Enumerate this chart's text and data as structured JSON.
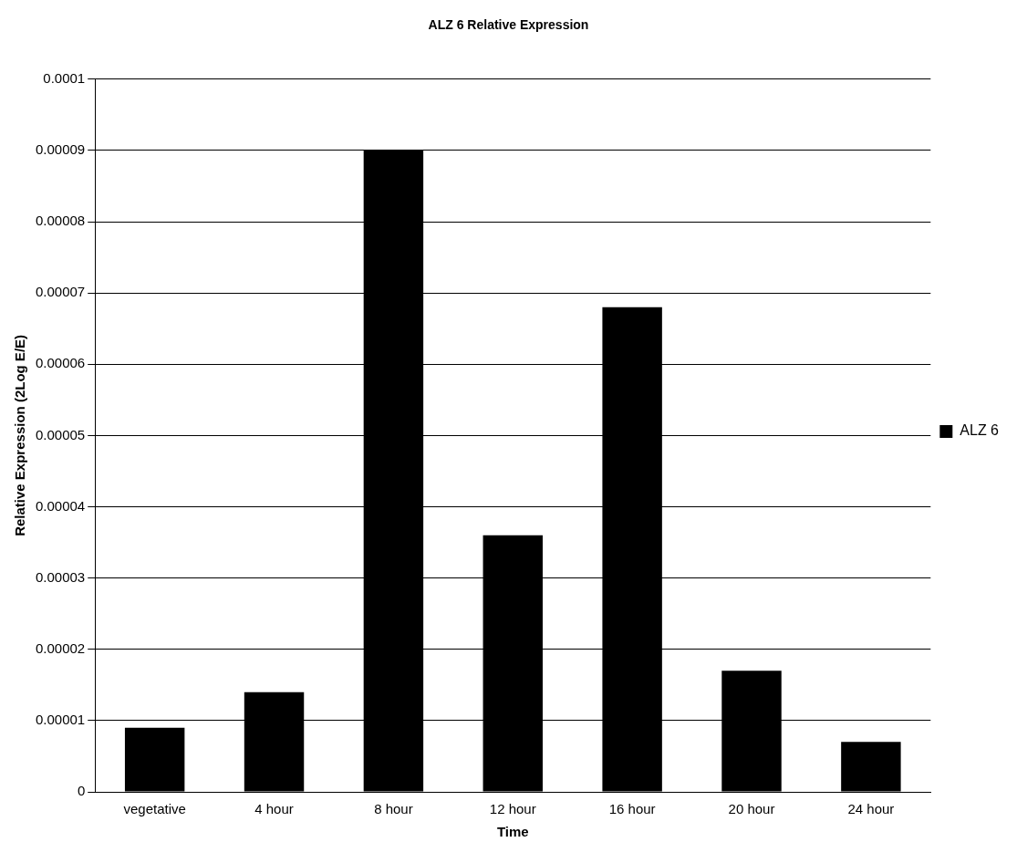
{
  "chart_data": {
    "type": "bar",
    "title": "ALZ 6 Relative Expression",
    "xlabel": "Time",
    "ylabel": "Relative Expression (2Log E/E)",
    "categories": [
      "vegetative",
      "4 hour",
      "8 hour",
      "12 hour",
      "16 hour",
      "20 hour",
      "24 hour"
    ],
    "series": [
      {
        "name": "ALZ 6",
        "color": "#000000",
        "values": [
          9e-06,
          1.4e-05,
          9e-05,
          3.6e-05,
          6.8e-05,
          1.7e-05,
          7e-06
        ]
      }
    ],
    "ylim": [
      0,
      0.0001
    ],
    "yticks": [
      0,
      {
        "value": 1e-05,
        "label": "0.00001"
      },
      {
        "value": 2e-05,
        "label": "0.00002"
      },
      {
        "value": 3e-05,
        "label": "0.00003"
      },
      {
        "value": 4e-05,
        "label": "0.00004"
      },
      {
        "value": 5e-05,
        "label": "0.00005"
      },
      {
        "value": 6e-05,
        "label": "0.00006"
      },
      {
        "value": 7e-05,
        "label": "0.00007"
      },
      {
        "value": 8e-05,
        "label": "0.00008"
      },
      {
        "value": 9e-05,
        "label": "0.00009"
      },
      0.0001
    ],
    "grid": "y",
    "legend": "right"
  }
}
